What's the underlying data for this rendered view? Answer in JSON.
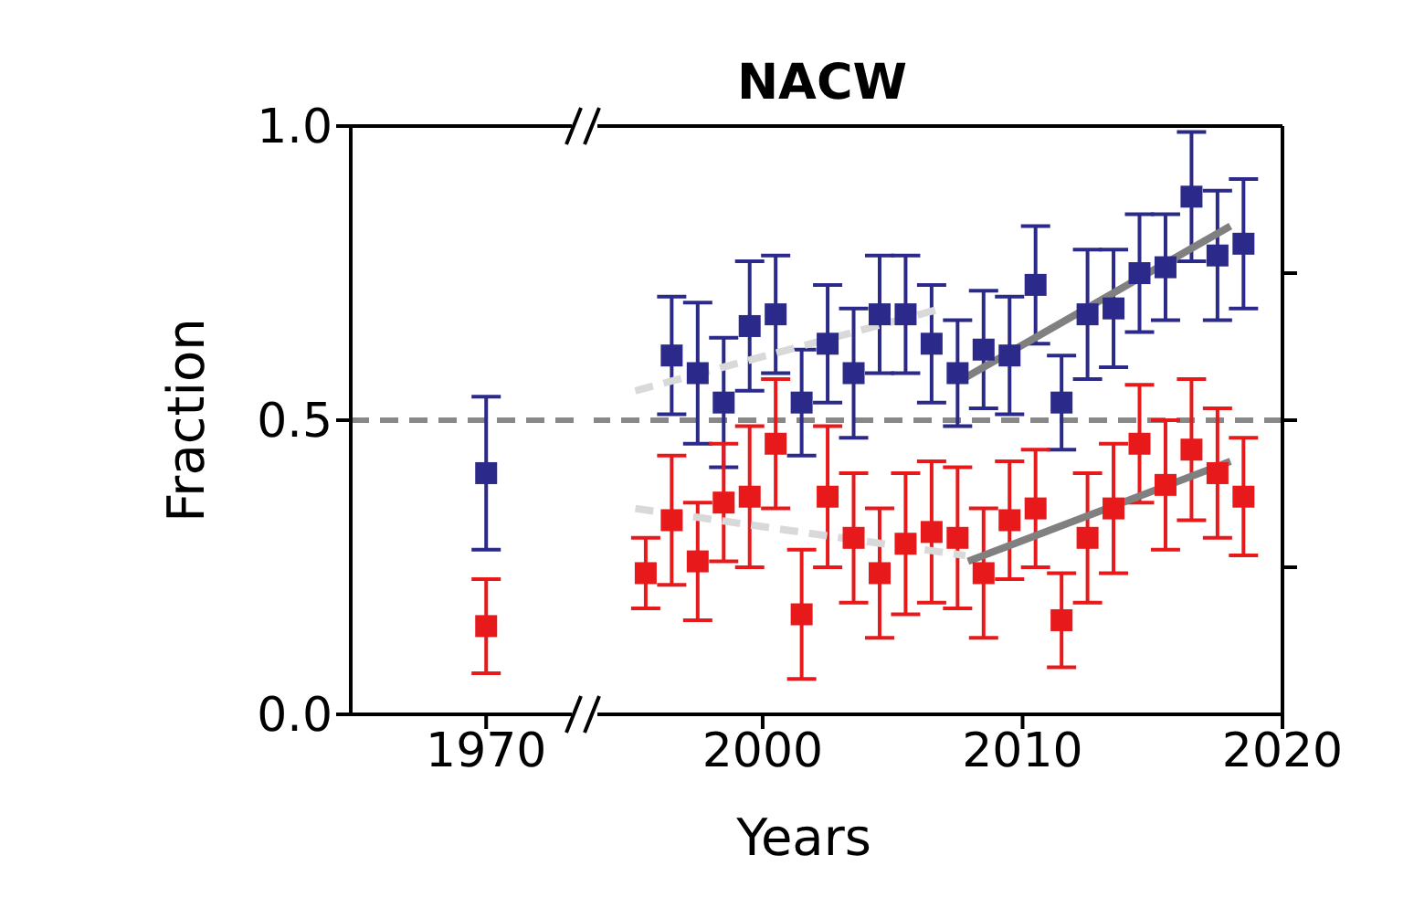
{
  "chart_data": [
    {
      "type": "scatter",
      "ylabel": "Fraction",
      "categories": [
        "1970"
      ],
      "ylim": [
        0,
        1
      ],
      "yticks": [
        {
          "value": 0,
          "label": "0.0"
        },
        {
          "value": 0.5,
          "label": "0.5"
        },
        {
          "value": 1,
          "label": "1.0"
        }
      ],
      "marker": "square",
      "ref_lines": [
        {
          "axis": "y",
          "value": 0.5,
          "color": "#888888",
          "line_style": "dashed"
        }
      ],
      "series": [
        {
          "type": "scatter",
          "color": "#2b2a8a",
          "values": [
            0.41
          ],
          "errors": [
            0.13
          ]
        },
        {
          "type": "scatter",
          "color": "#e8191b",
          "values": [
            0.15
          ],
          "errors": [
            0.08
          ]
        }
      ]
    },
    {
      "type": "scatter",
      "title": "NACW",
      "xlabel": "Years",
      "xlim": [
        1993.5,
        2020
      ],
      "xticks": [
        2000,
        2010,
        2020
      ],
      "ylim": [
        0,
        1
      ],
      "yticks": [
        {
          "value": 0.25,
          "label": null
        },
        {
          "value": 0.5,
          "label": null
        },
        {
          "value": 0.75,
          "label": null
        }
      ],
      "tick_labels": "x",
      "marker": "square",
      "ref_lines": [
        {
          "axis": "y",
          "value": 0.5,
          "color": "#888888",
          "line_style": "dashed"
        }
      ],
      "series": [
        {
          "type": "line",
          "color": "#d9d9d9",
          "line_style": "dashed",
          "marker": "none",
          "x": [
            1995.1,
            2006.9
          ],
          "values": [
            0.55,
            0.69
          ]
        },
        {
          "type": "line",
          "color": "#d9d9d9",
          "line_style": "dashed",
          "marker": "none",
          "x": [
            1995.1,
            2007.8
          ],
          "values": [
            0.35,
            0.27
          ]
        },
        {
          "type": "line",
          "color": "#808080",
          "line_style": "solid",
          "marker": "none",
          "x": [
            2007.7,
            2018
          ],
          "values": [
            0.57,
            0.83
          ]
        },
        {
          "type": "line",
          "color": "#808080",
          "line_style": "solid",
          "marker": "none",
          "x": [
            2007.9,
            2018
          ],
          "values": [
            0.26,
            0.43
          ]
        },
        {
          "type": "scatter",
          "color": "#2b2a8a",
          "x": [
            1996.5,
            1997.5,
            1998.5,
            1999.5,
            2000.5,
            2001.5,
            2002.5,
            2003.5,
            2004.5,
            2005.5,
            2006.5,
            2007.5,
            2008.5,
            2009.5,
            2010.5,
            2011.5,
            2012.5,
            2013.5,
            2014.5,
            2015.5,
            2016.5,
            2017.5,
            2018.5
          ],
          "values": [
            0.61,
            0.58,
            0.53,
            0.66,
            0.68,
            0.53,
            0.63,
            0.58,
            0.68,
            0.68,
            0.63,
            0.58,
            0.62,
            0.61,
            0.73,
            0.53,
            0.68,
            0.69,
            0.75,
            0.76,
            0.88,
            0.78,
            0.8
          ],
          "errors": [
            0.1,
            0.12,
            0.11,
            0.11,
            0.1,
            0.09,
            0.1,
            0.11,
            0.1,
            0.1,
            0.1,
            0.09,
            0.1,
            0.1,
            0.1,
            0.08,
            0.11,
            0.1,
            0.1,
            0.09,
            0.11,
            0.11,
            0.11
          ]
        },
        {
          "type": "scatter",
          "color": "#e8191b",
          "x": [
            1995.5,
            1996.5,
            1997.5,
            1998.5,
            1999.5,
            2000.5,
            2001.5,
            2002.5,
            2003.5,
            2004.5,
            2005.5,
            2006.5,
            2007.5,
            2008.5,
            2009.5,
            2010.5,
            2011.5,
            2012.5,
            2013.5,
            2014.5,
            2015.5,
            2016.5,
            2017.5,
            2018.5
          ],
          "values": [
            0.24,
            0.33,
            0.26,
            0.36,
            0.37,
            0.46,
            0.17,
            0.37,
            0.3,
            0.24,
            0.29,
            0.31,
            0.3,
            0.24,
            0.33,
            0.35,
            0.16,
            0.3,
            0.35,
            0.46,
            0.39,
            0.45,
            0.41,
            0.37
          ],
          "errors": [
            0.06,
            0.11,
            0.1,
            0.1,
            0.12,
            0.11,
            0.11,
            0.12,
            0.11,
            0.11,
            0.12,
            0.12,
            0.12,
            0.11,
            0.1,
            0.1,
            0.08,
            0.11,
            0.11,
            0.1,
            0.11,
            0.12,
            0.11,
            0.1
          ]
        }
      ]
    }
  ]
}
